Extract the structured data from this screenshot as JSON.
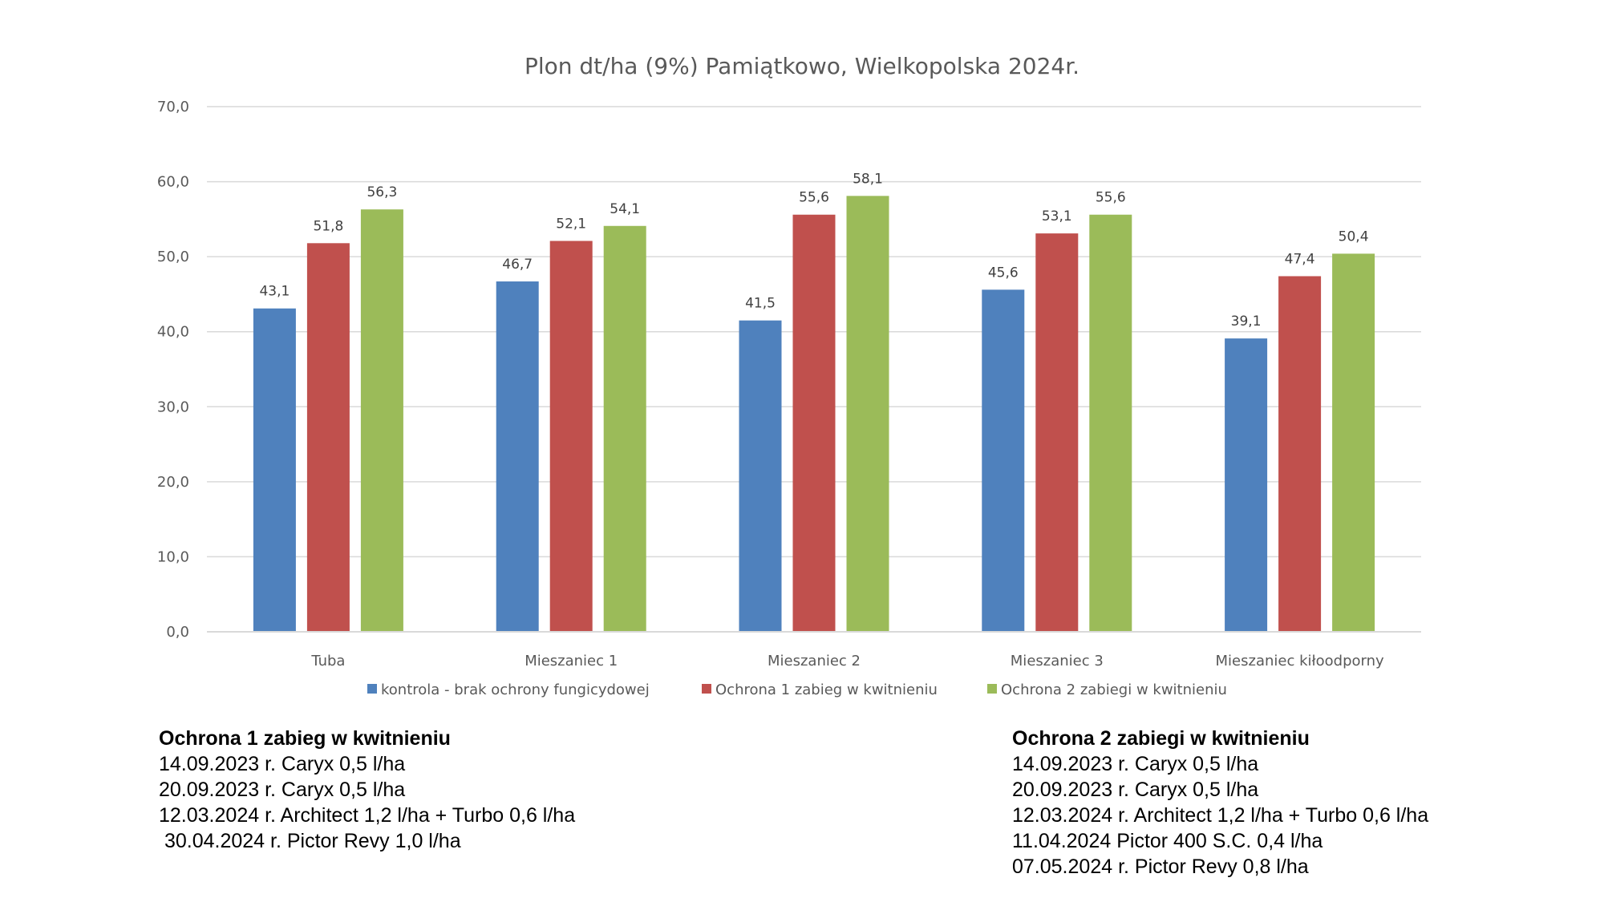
{
  "chart_data": {
    "type": "bar",
    "title": "Plon dt/ha (9%) Pamiątkowo, Wielkopolska 2024r.",
    "xlabel": "",
    "ylabel": "",
    "ylim": [
      0,
      70
    ],
    "yticks": [
      0,
      10,
      20,
      30,
      40,
      50,
      60,
      70
    ],
    "ytick_labels": [
      "0,0",
      "10,0",
      "20,0",
      "30,0",
      "40,0",
      "50,0",
      "60,0",
      "70,0"
    ],
    "grid": true,
    "legend_position": "bottom",
    "categories": [
      "Tuba",
      "Mieszaniec 1",
      "Mieszaniec 2",
      "Mieszaniec 3",
      "Mieszaniec kiłoodporny"
    ],
    "series": [
      {
        "name": "kontrola - brak ochrony fungicydowej",
        "color": "#4f81bd",
        "values": [
          43.1,
          46.7,
          41.5,
          45.6,
          39.1
        ],
        "labels": [
          "43,1",
          "46,7",
          "41,5",
          "45,6",
          "39,1"
        ]
      },
      {
        "name": "Ochrona 1 zabieg w kwitnieniu",
        "color": "#c0504d",
        "values": [
          51.8,
          52.1,
          55.6,
          53.1,
          47.4
        ],
        "labels": [
          "51,8",
          "52,1",
          "55,6",
          "53,1",
          "47,4"
        ]
      },
      {
        "name": "Ochrona 2 zabiegi w kwitnieniu",
        "color": "#9bbb59",
        "values": [
          56.3,
          54.1,
          58.1,
          55.6,
          50.4
        ],
        "labels": [
          "56,3",
          "54,1",
          "58,1",
          "55,6",
          "50,4"
        ]
      }
    ]
  },
  "notes": {
    "left": {
      "heading": "Ochrona 1 zabieg w kwitnieniu",
      "lines": [
        "14.09.2023 r. Caryx 0,5 l/ha",
        "20.09.2023 r. Caryx 0,5 l/ha",
        "12.03.2024 r. Architect 1,2 l/ha + Turbo 0,6 l/ha",
        " 30.04.2024 r. Pictor Revy 1,0 l/ha"
      ]
    },
    "right": {
      "heading": "Ochrona 2 zabiegi w kwitnieniu",
      "lines": [
        "14.09.2023 r. Caryx 0,5 l/ha",
        "20.09.2023 r. Caryx 0,5 l/ha",
        "12.03.2024 r. Architect 1,2 l/ha + Turbo 0,6 l/ha",
        "11.04.2024 Pictor 400 S.C. 0,4 l/ha",
        "07.05.2024 r. Pictor Revy 0,8 l/ha"
      ]
    }
  }
}
